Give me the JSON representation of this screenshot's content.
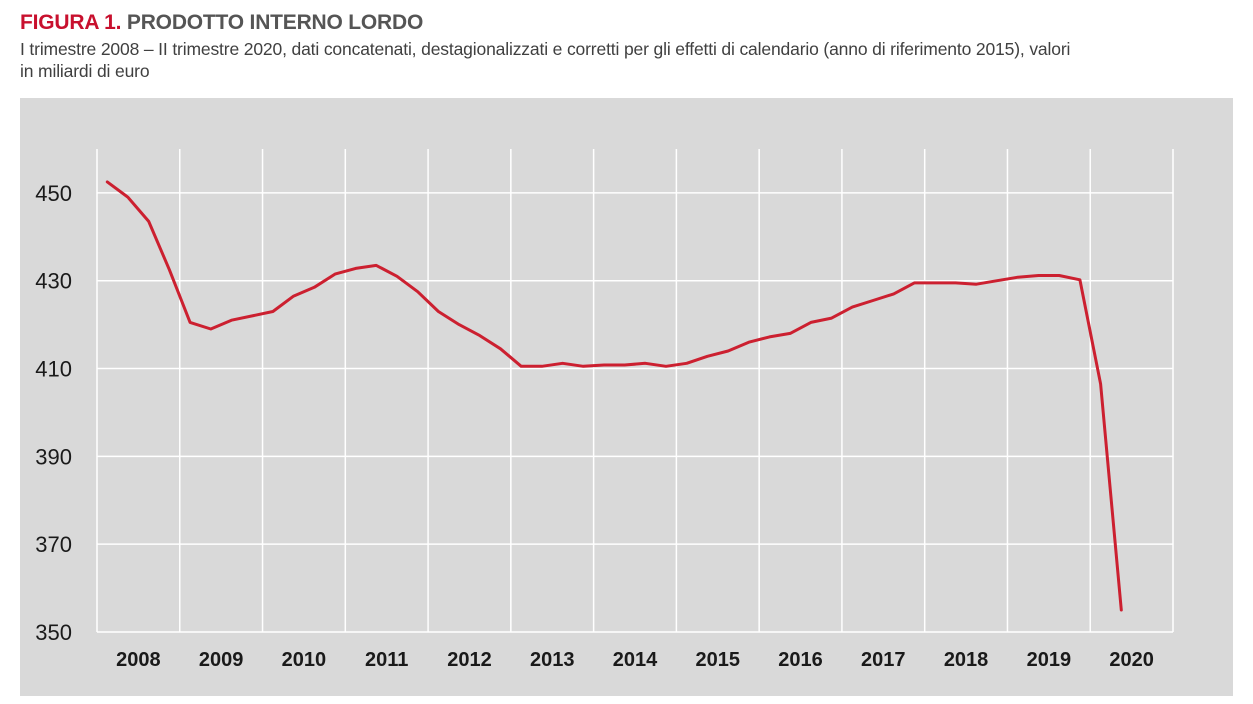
{
  "header": {
    "figure_label": "FIGURA 1.",
    "title": "PRODOTTO INTERNO LORDO",
    "subtitle_line1": "I trimestre 2008 – II trimestre 2020, dati concatenati, destagionalizzati e corretti per gli effetti di calendario (anno di riferimento 2015), valori",
    "subtitle_line2": "in miliardi di euro"
  },
  "colors": {
    "figure_label": "#c8102e",
    "line": "#cc2030",
    "panel_background": "#d9d9d9",
    "gridline": "#ffffff"
  },
  "chart_data": {
    "type": "line",
    "title": "PRODOTTO INTERNO LORDO",
    "xlabel": "",
    "ylabel": "",
    "ylim": [
      350,
      460
    ],
    "yticks": [
      350,
      370,
      390,
      410,
      430,
      450
    ],
    "categories": [
      "2008",
      "2009",
      "2010",
      "2011",
      "2012",
      "2013",
      "2014",
      "2015",
      "2016",
      "2017",
      "2018",
      "2019",
      "2020"
    ],
    "grid": true,
    "legend": "none",
    "series": [
      {
        "name": "Prodotto interno lordo",
        "x": [
          "2008-Q1",
          "2008-Q2",
          "2008-Q3",
          "2008-Q4",
          "2009-Q1",
          "2009-Q2",
          "2009-Q3",
          "2009-Q4",
          "2010-Q1",
          "2010-Q2",
          "2010-Q3",
          "2010-Q4",
          "2011-Q1",
          "2011-Q2",
          "2011-Q3",
          "2011-Q4",
          "2012-Q1",
          "2012-Q2",
          "2012-Q3",
          "2012-Q4",
          "2013-Q1",
          "2013-Q2",
          "2013-Q3",
          "2013-Q4",
          "2014-Q1",
          "2014-Q2",
          "2014-Q3",
          "2014-Q4",
          "2015-Q1",
          "2015-Q2",
          "2015-Q3",
          "2015-Q4",
          "2016-Q1",
          "2016-Q2",
          "2016-Q3",
          "2016-Q4",
          "2017-Q1",
          "2017-Q2",
          "2017-Q3",
          "2017-Q4",
          "2018-Q1",
          "2018-Q2",
          "2018-Q3",
          "2018-Q4",
          "2019-Q1",
          "2019-Q2",
          "2019-Q3",
          "2019-Q4",
          "2020-Q1",
          "2020-Q2"
        ],
        "values": [
          452.5,
          449.0,
          443.5,
          432.5,
          420.5,
          419.0,
          421.0,
          422.0,
          423.0,
          426.5,
          428.5,
          431.5,
          432.8,
          433.5,
          431.0,
          427.5,
          423.0,
          420.0,
          417.5,
          414.5,
          410.5,
          410.5,
          411.2,
          410.5,
          410.8,
          410.8,
          411.2,
          410.5,
          411.2,
          412.8,
          414.0,
          416.0,
          417.2,
          418.0,
          420.5,
          421.5,
          424.0,
          425.5,
          427.0,
          429.5,
          429.5,
          429.5,
          429.2,
          430.0,
          430.8,
          431.2,
          431.2,
          430.2,
          406.5,
          355.0
        ]
      }
    ]
  }
}
